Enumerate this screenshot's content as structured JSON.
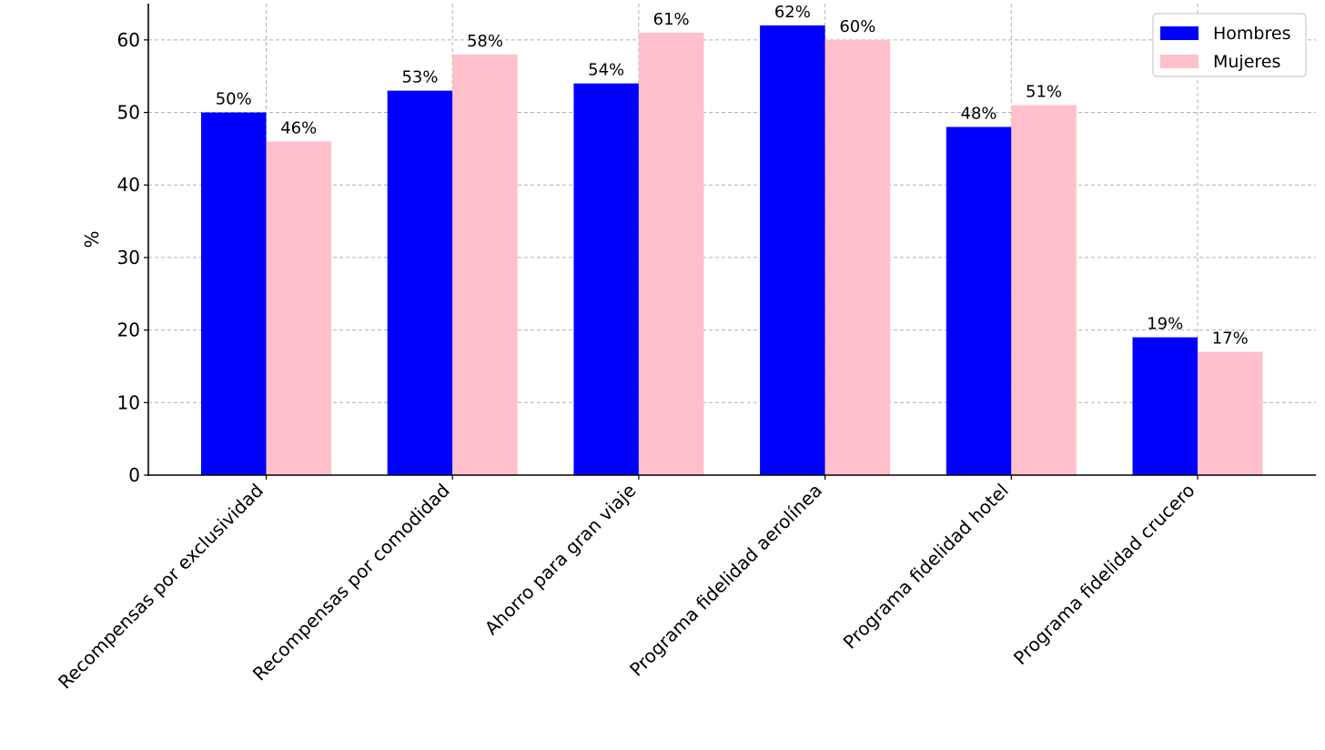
{
  "chart_data": {
    "type": "bar",
    "categories": [
      "Recompensas por exclusividad",
      "Recompensas por comodidad",
      "Ahorro para gran viaje",
      "Programa fidelidad aerolínea",
      "Programa fidelidad hotel",
      "Programa fidelidad crucero"
    ],
    "series": [
      {
        "name": "Hombres",
        "color": "#0000ff",
        "values": [
          50,
          53,
          54,
          62,
          48,
          19
        ]
      },
      {
        "name": "Mujeres",
        "color": "#ffc0cb",
        "values": [
          46,
          58,
          61,
          60,
          51,
          17
        ]
      }
    ],
    "value_suffix": "%",
    "ylabel": "%",
    "xlabel": "",
    "ylim": [
      0,
      65
    ],
    "yticks": [
      0,
      10,
      20,
      30,
      40,
      50,
      60
    ],
    "grid": true,
    "legend_position": "top-right"
  }
}
